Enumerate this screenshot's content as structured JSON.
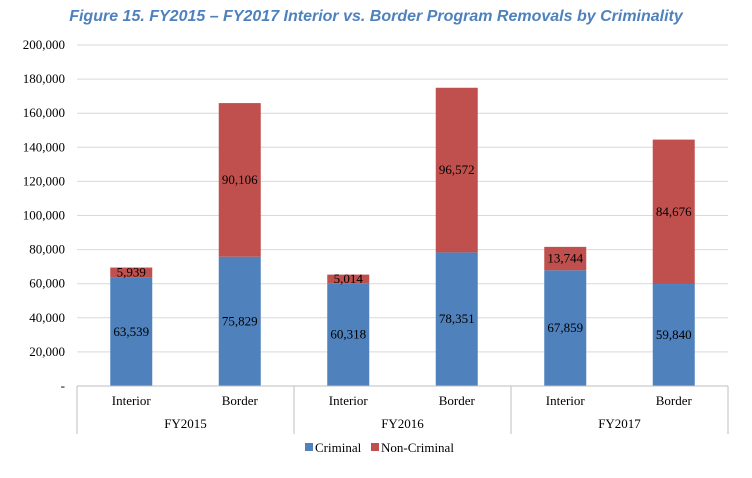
{
  "chart_data": {
    "type": "bar",
    "stacked": true,
    "title": "Figure 15. FY2015 – FY2017 Interior vs. Border Program Removals by Criminality",
    "groups": [
      "FY2015",
      "FY2016",
      "FY2017"
    ],
    "categories": [
      "Interior",
      "Border",
      "Interior",
      "Border",
      "Interior",
      "Border"
    ],
    "category_group": [
      0,
      0,
      1,
      1,
      2,
      2
    ],
    "series": [
      {
        "name": "Criminal",
        "values": [
          63539,
          75829,
          60318,
          78351,
          67859,
          59840
        ],
        "labels": [
          "63,539",
          "75,829",
          "60,318",
          "78,351",
          "67,859",
          "59,840"
        ],
        "color": "#4f81bd"
      },
      {
        "name": "Non-Criminal",
        "values": [
          5939,
          90106,
          5014,
          96572,
          13744,
          84676
        ],
        "labels": [
          "5,939",
          "90,106",
          "5,014",
          "96,572",
          "13,744",
          "84,676"
        ],
        "color": "#c0504d"
      }
    ],
    "ylim": [
      0,
      200000
    ],
    "yticks": [
      0,
      20000,
      40000,
      60000,
      80000,
      100000,
      120000,
      140000,
      160000,
      180000,
      200000
    ],
    "ytick_labels": [
      "-",
      "20,000",
      "40,000",
      "60,000",
      "80,000",
      "100,000",
      "120,000",
      "140,000",
      "160,000",
      "180,000",
      "200,000"
    ],
    "legend": "bottom",
    "grid": true
  }
}
